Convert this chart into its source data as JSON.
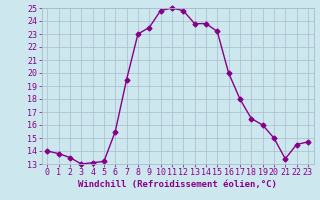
{
  "x": [
    0,
    1,
    2,
    3,
    4,
    5,
    6,
    7,
    8,
    9,
    10,
    11,
    12,
    13,
    14,
    15,
    16,
    17,
    18,
    19,
    20,
    21,
    22,
    23
  ],
  "y": [
    14.0,
    13.8,
    13.5,
    13.0,
    13.1,
    13.2,
    15.5,
    19.5,
    23.0,
    23.5,
    24.8,
    25.0,
    24.8,
    23.8,
    23.8,
    23.2,
    20.0,
    18.0,
    16.5,
    16.0,
    15.0,
    13.4,
    14.5,
    14.7
  ],
  "line_color": "#880088",
  "marker": "D",
  "marker_size": 2.5,
  "line_width": 1.0,
  "bg_color": "#cce8ee",
  "grid_color": "#aabbcc",
  "xlabel": "Windchill (Refroidissement éolien,°C)",
  "xlabel_fontsize": 6.5,
  "tick_fontsize": 6.0,
  "ylim": [
    13,
    25
  ],
  "xlim": [
    -0.5,
    23.5
  ],
  "yticks": [
    13,
    14,
    15,
    16,
    17,
    18,
    19,
    20,
    21,
    22,
    23,
    24,
    25
  ],
  "xticks": [
    0,
    1,
    2,
    3,
    4,
    5,
    6,
    7,
    8,
    9,
    10,
    11,
    12,
    13,
    14,
    15,
    16,
    17,
    18,
    19,
    20,
    21,
    22,
    23
  ]
}
